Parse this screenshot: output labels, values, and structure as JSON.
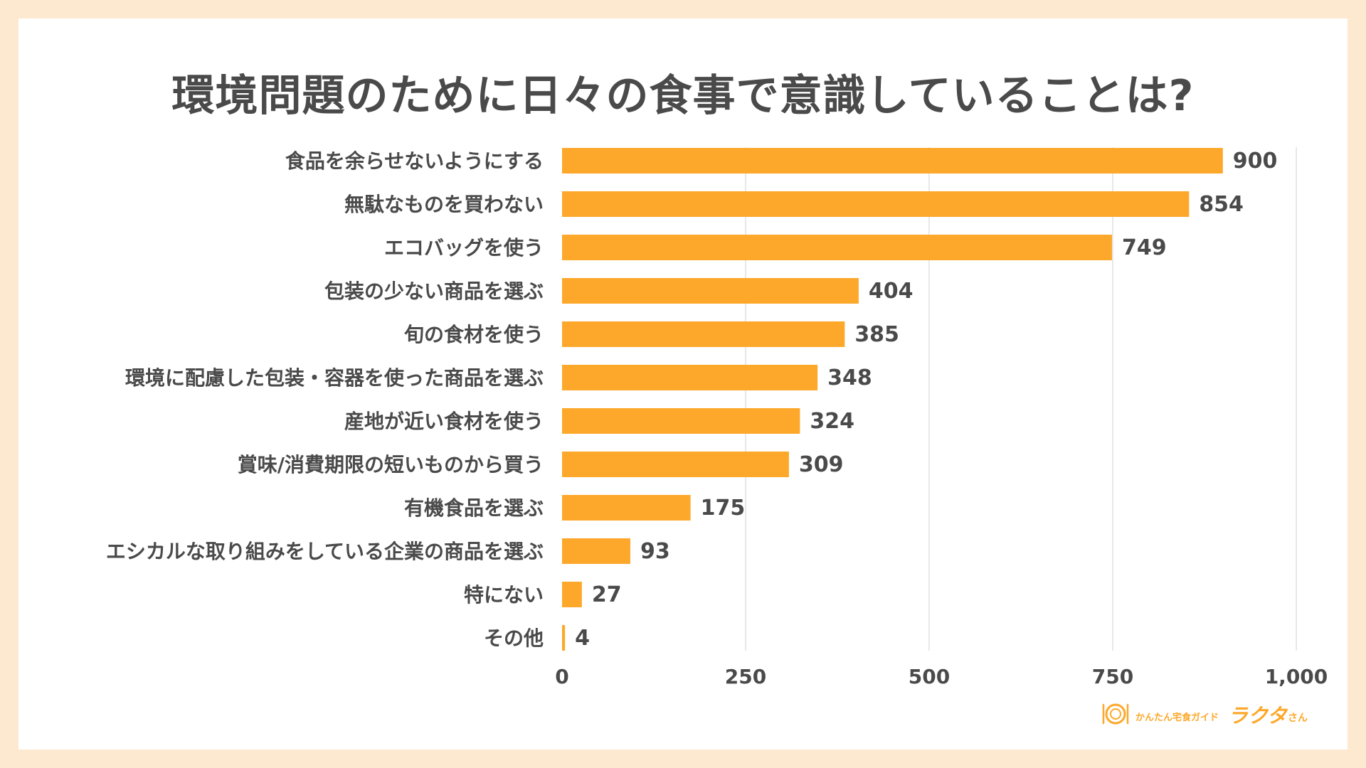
{
  "colors": {
    "background": "#fde9d0",
    "card": "#ffffff",
    "bar": "#fda82a",
    "text": "#4a4a4a",
    "grid": "#e0e0e0"
  },
  "chart_data": {
    "type": "bar",
    "orientation": "horizontal",
    "title": "環境問題のために日々の食事で意識していることは?",
    "categories": [
      "食品を余らせないようにする",
      "無駄なものを買わない",
      "エコバッグを使う",
      "包装の少ない商品を選ぶ",
      "旬の食材を使う",
      "環境に配慮した包装・容器を使った商品を選ぶ",
      "産地が近い食材を使う",
      "賞味/消費期限の短いものから買う",
      "有機食品を選ぶ",
      "エシカルな取り組みをしている企業の商品を選ぶ",
      "特にない",
      "その他"
    ],
    "values": [
      900,
      854,
      749,
      404,
      385,
      348,
      324,
      309,
      175,
      93,
      27,
      4
    ],
    "xlim": [
      0,
      1000
    ],
    "xticks": [
      0,
      250,
      500,
      750,
      1000
    ],
    "xtick_labels": [
      "0",
      "250",
      "500",
      "750",
      "1,000"
    ],
    "grid": true,
    "legend": "none"
  },
  "logo": {
    "tagline": "かんたん宅食ガイド",
    "name": "ラクタ",
    "suffix": "さん"
  }
}
